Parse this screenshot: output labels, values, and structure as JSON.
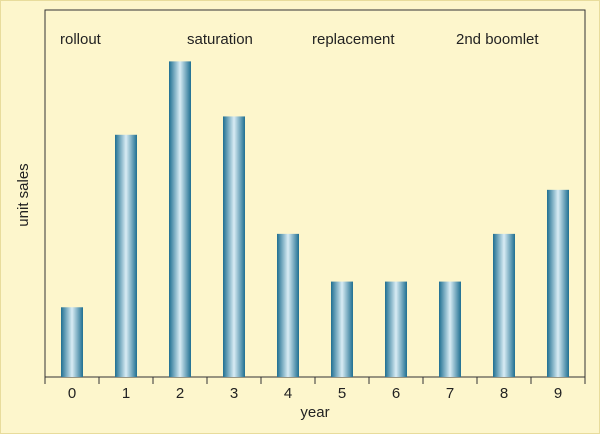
{
  "chart_data": {
    "type": "bar",
    "x_label": "year",
    "y_label": "unit sales",
    "annotations": [
      "rollout",
      "saturation",
      "replacement",
      "2nd boomlet"
    ],
    "categories": [
      "0",
      "1",
      "2",
      "3",
      "4",
      "5",
      "6",
      "7",
      "8",
      "9"
    ],
    "values": [
      19,
      66,
      86,
      71,
      39,
      26,
      26,
      26,
      39,
      51
    ],
    "color": "#1f6f91",
    "ylim": [
      0,
      100
    ],
    "grid": false
  }
}
